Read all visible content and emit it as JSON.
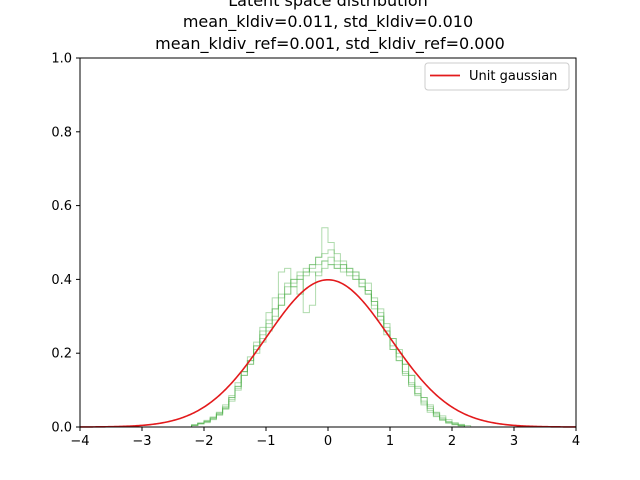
{
  "chart_data": {
    "type": "line",
    "title_lines": [
      "Latent space distribution",
      "mean_kldiv=0.011, std_kldiv=0.010",
      "mean_kldiv_ref=0.001, std_kldiv_ref=0.000"
    ],
    "xlim": [
      -4,
      4
    ],
    "ylim": [
      0,
      1.0
    ],
    "x_ticks": [
      -4,
      -3,
      -2,
      -1,
      0,
      1,
      2,
      3,
      4
    ],
    "x_tick_labels": [
      "−4",
      "−3",
      "−2",
      "−1",
      "0",
      "1",
      "2",
      "3",
      "4"
    ],
    "y_ticks": [
      0,
      0.2,
      0.4,
      0.6,
      0.8,
      1.0
    ],
    "y_tick_labels": [
      "0.0",
      "0.2",
      "0.4",
      "0.6",
      "0.8",
      "1.0"
    ],
    "grid": false,
    "legend": {
      "position": "top-right",
      "entries": [
        "Unit gaussian"
      ]
    },
    "reference_curve": {
      "name": "Unit gaussian",
      "color": "#e31a1c",
      "distribution": "normal",
      "mean": 0,
      "std": 1
    },
    "histogram_color": "#4daf4a",
    "histogram_opacity": 0.45,
    "histogram_bin_width": 0.1,
    "histograms": [
      {
        "values": [
          0.005,
          0.008,
          0.012,
          0.02,
          0.032,
          0.048,
          0.07,
          0.1,
          0.14,
          0.17,
          0.2,
          0.23,
          0.26,
          0.29,
          0.33,
          0.36,
          0.38,
          0.4,
          0.42,
          0.44,
          0.46,
          0.47,
          0.48,
          0.47,
          0.45,
          0.43,
          0.42,
          0.4,
          0.37,
          0.34,
          0.31,
          0.27,
          0.24,
          0.2,
          0.17,
          0.14,
          0.11,
          0.08,
          0.06,
          0.04,
          0.03,
          0.02,
          0.012,
          0.007,
          0.004
        ],
        "x_start": -2.2
      },
      {
        "values": [
          0.004,
          0.01,
          0.015,
          0.024,
          0.036,
          0.05,
          0.08,
          0.11,
          0.15,
          0.18,
          0.22,
          0.25,
          0.28,
          0.32,
          0.35,
          0.38,
          0.4,
          0.41,
          0.42,
          0.44,
          0.46,
          0.54,
          0.5,
          0.44,
          0.43,
          0.42,
          0.4,
          0.38,
          0.36,
          0.33,
          0.3,
          0.26,
          0.22,
          0.19,
          0.15,
          0.12,
          0.09,
          0.07,
          0.05,
          0.035,
          0.022,
          0.013,
          0.008,
          0.005
        ],
        "x_start": -2.2
      },
      {
        "values": [
          0.006,
          0.011,
          0.018,
          0.027,
          0.04,
          0.06,
          0.085,
          0.12,
          0.15,
          0.19,
          0.23,
          0.27,
          0.31,
          0.35,
          0.42,
          0.43,
          0.38,
          0.36,
          0.41,
          0.43,
          0.44,
          0.45,
          0.46,
          0.45,
          0.44,
          0.43,
          0.42,
          0.4,
          0.39,
          0.34,
          0.3,
          0.26,
          0.21,
          0.18,
          0.14,
          0.11,
          0.09,
          0.065,
          0.045,
          0.03,
          0.02,
          0.012,
          0.007,
          0.004
        ],
        "x_start": -2.2
      },
      {
        "values": [
          0.005,
          0.009,
          0.014,
          0.022,
          0.034,
          0.052,
          0.075,
          0.105,
          0.14,
          0.17,
          0.21,
          0.24,
          0.27,
          0.3,
          0.33,
          0.36,
          0.39,
          0.4,
          0.31,
          0.33,
          0.42,
          0.45,
          0.44,
          0.43,
          0.44,
          0.42,
          0.41,
          0.39,
          0.37,
          0.35,
          0.32,
          0.28,
          0.24,
          0.21,
          0.17,
          0.14,
          0.105,
          0.08,
          0.055,
          0.038,
          0.025,
          0.015,
          0.009,
          0.005
        ],
        "x_start": -2.2
      },
      {
        "values": [
          0.005,
          0.01,
          0.016,
          0.025,
          0.038,
          0.055,
          0.08,
          0.11,
          0.15,
          0.18,
          0.22,
          0.26,
          0.29,
          0.32,
          0.36,
          0.39,
          0.4,
          0.42,
          0.43,
          0.42,
          0.41,
          0.43,
          0.44,
          0.43,
          0.42,
          0.41,
          0.4,
          0.38,
          0.36,
          0.32,
          0.29,
          0.25,
          0.21,
          0.18,
          0.145,
          0.115,
          0.085,
          0.06,
          0.04,
          0.028,
          0.018,
          0.01,
          0.006,
          0.003
        ],
        "x_start": -2.2
      }
    ]
  }
}
